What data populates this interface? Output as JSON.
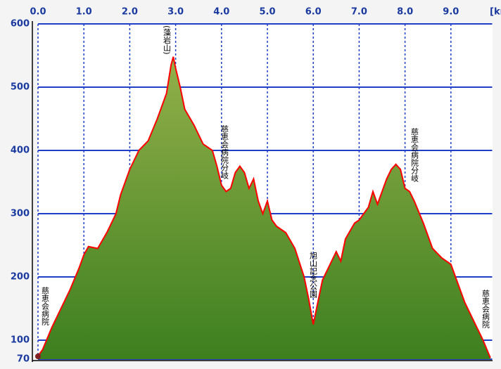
{
  "chart_data": {
    "type": "area",
    "xlabel": "[km]",
    "x": [
      0.0,
      0.1,
      0.3,
      0.5,
      0.7,
      0.9,
      1.0,
      1.1,
      1.3,
      1.5,
      1.7,
      1.8,
      2.0,
      2.2,
      2.4,
      2.6,
      2.8,
      2.9,
      2.95,
      3.0,
      3.1,
      3.2,
      3.4,
      3.6,
      3.8,
      3.9,
      4.0,
      4.1,
      4.2,
      4.3,
      4.4,
      4.5,
      4.6,
      4.7,
      4.8,
      4.9,
      5.0,
      5.1,
      5.2,
      5.4,
      5.6,
      5.8,
      5.9,
      6.0,
      6.1,
      6.2,
      6.4,
      6.5,
      6.6,
      6.7,
      6.9,
      7.0,
      7.2,
      7.3,
      7.4,
      7.5,
      7.6,
      7.7,
      7.8,
      7.9,
      8.0,
      8.1,
      8.2,
      8.4,
      8.6,
      8.8,
      9.0,
      9.1,
      9.3,
      9.5,
      9.7,
      9.86
    ],
    "values": [
      75,
      85,
      120,
      150,
      180,
      215,
      235,
      248,
      245,
      270,
      300,
      330,
      370,
      400,
      415,
      450,
      490,
      535,
      548,
      530,
      500,
      465,
      440,
      410,
      400,
      375,
      345,
      335,
      340,
      365,
      375,
      365,
      340,
      355,
      320,
      300,
      320,
      290,
      280,
      270,
      245,
      200,
      165,
      125,
      160,
      195,
      225,
      240,
      225,
      260,
      285,
      290,
      310,
      335,
      315,
      335,
      355,
      370,
      378,
      370,
      340,
      335,
      320,
      285,
      245,
      230,
      220,
      200,
      160,
      130,
      100,
      72
    ],
    "color": "#ff0000",
    "fill_top": "#93b04a",
    "fill_bottom": "#3d7f1f",
    "grid_color": "#1f3fc8",
    "xlim": [
      0,
      9.9
    ],
    "xticks": [
      {
        "value": 0,
        "label": "0.0"
      },
      {
        "value": 1,
        "label": "1.0"
      },
      {
        "value": 2,
        "label": "2.0"
      },
      {
        "value": 3,
        "label": "3.0"
      },
      {
        "value": 4,
        "label": "4.0"
      },
      {
        "value": 5,
        "label": "5.0"
      },
      {
        "value": 6,
        "label": "6.0"
      },
      {
        "value": 7,
        "label": "7.0"
      },
      {
        "value": 8,
        "label": "8.0"
      },
      {
        "value": 9,
        "label": "9.0"
      }
    ],
    "ylim": [
      70,
      600
    ],
    "yticks": [
      70,
      100,
      200,
      300,
      400,
      500,
      600
    ],
    "grid": true,
    "annotations": [
      "慈恵会病院",
      "(藻岩山)",
      "慈恵会病院分岐",
      "旭山記念公園",
      "慈恵会病院分岐",
      "慈恵会病院"
    ]
  }
}
